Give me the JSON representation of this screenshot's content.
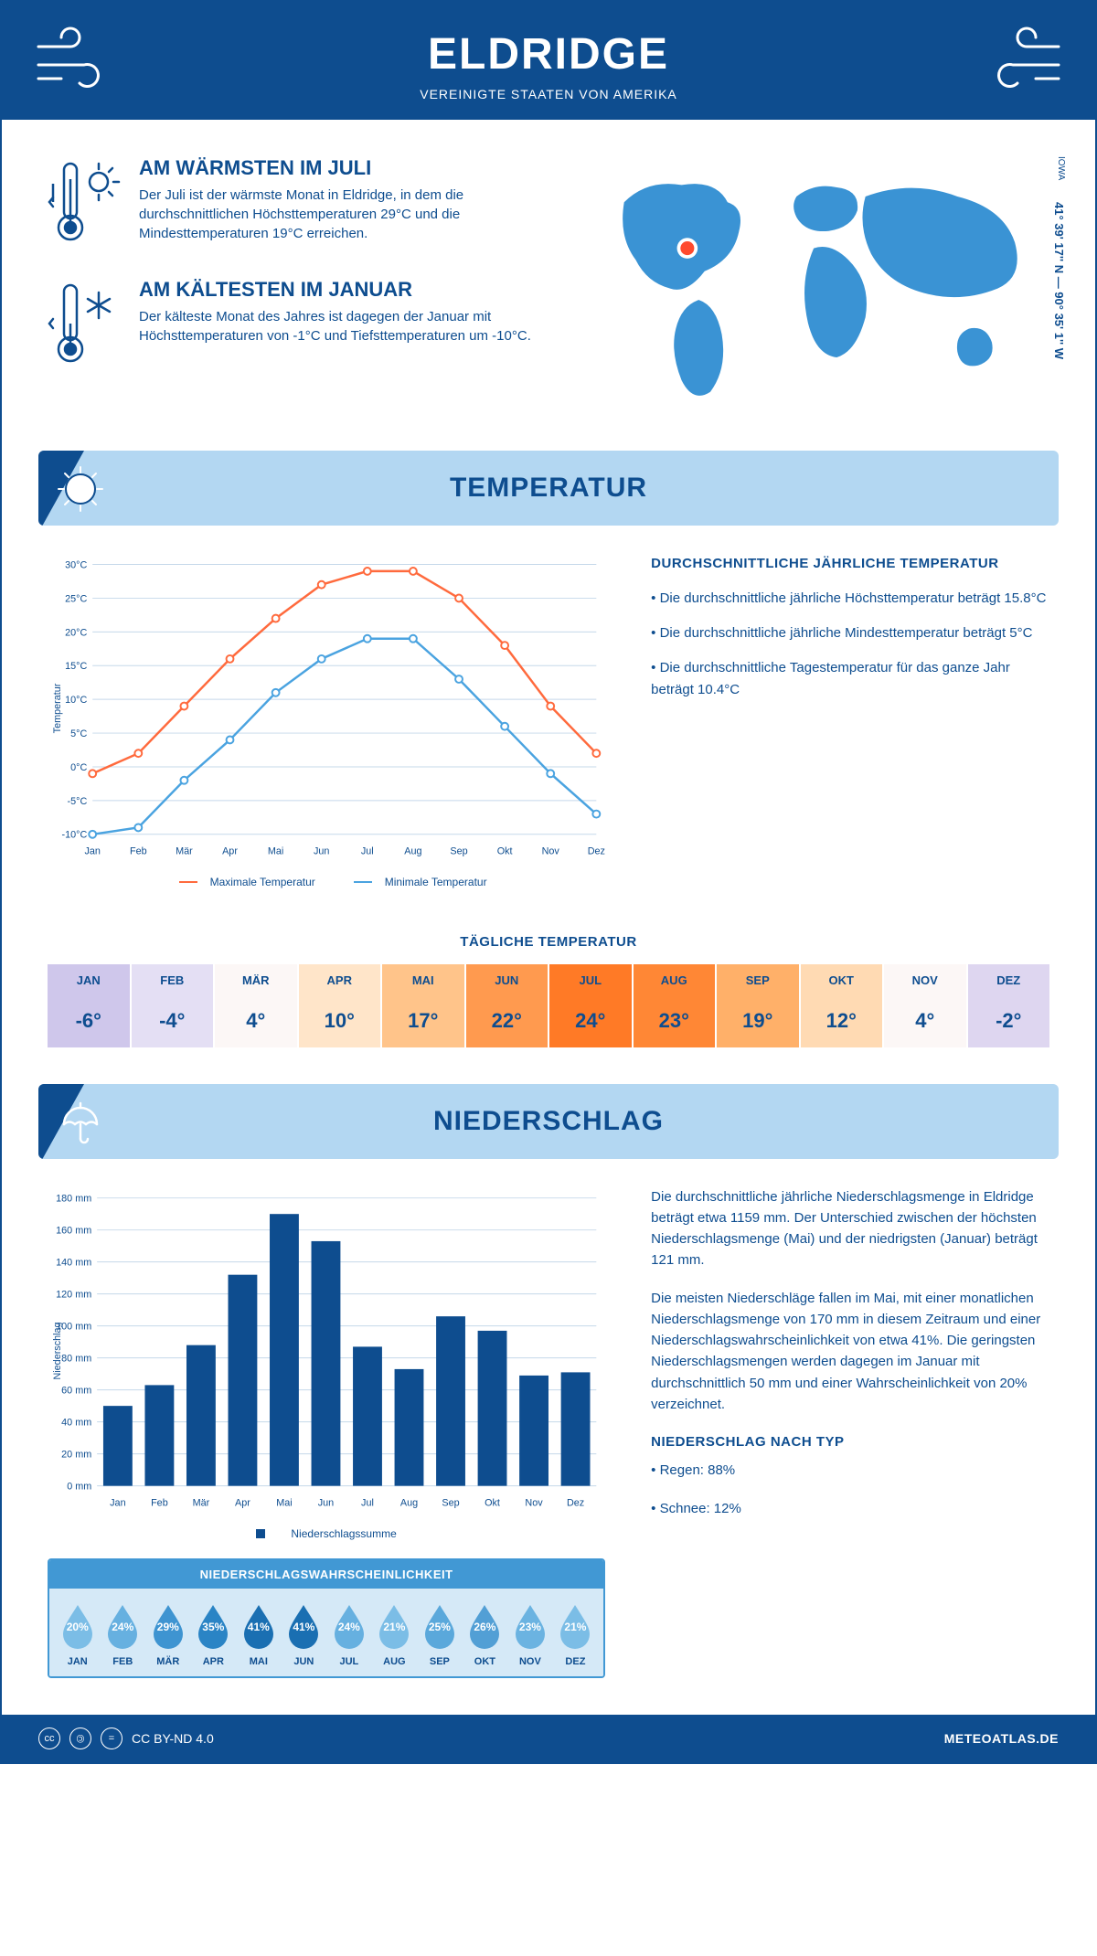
{
  "header": {
    "title": "ELDRIDGE",
    "subtitle": "VEREINIGTE STAATEN VON AMERIKA"
  },
  "location": {
    "region": "IOWA",
    "coords": "41° 39' 17'' N — 90° 35' 1'' W",
    "marker_color": "#ff4a2e"
  },
  "facts": {
    "warm": {
      "title": "AM WÄRMSTEN IM JULI",
      "text": "Der Juli ist der wärmste Monat in Eldridge, in dem die durchschnittlichen Höchsttemperaturen 29°C und die Mindesttemperaturen 19°C erreichen."
    },
    "cold": {
      "title": "AM KÄLTESTEN IM JANUAR",
      "text": "Der kälteste Monat des Jahres ist dagegen der Januar mit Höchsttemperaturen von -1°C und Tiefsttemperaturen um -10°C."
    }
  },
  "months": [
    "Jan",
    "Feb",
    "Mär",
    "Apr",
    "Mai",
    "Jun",
    "Jul",
    "Aug",
    "Sep",
    "Okt",
    "Nov",
    "Dez"
  ],
  "months_upper": [
    "JAN",
    "FEB",
    "MÄR",
    "APR",
    "MAI",
    "JUN",
    "JUL",
    "AUG",
    "SEP",
    "OKT",
    "NOV",
    "DEZ"
  ],
  "section_temp": "TEMPERATUR",
  "section_precip": "NIEDERSCHLAG",
  "temp_chart": {
    "type": "line",
    "ylabel": "Temperatur",
    "ylim": [
      -10,
      30
    ],
    "ytick_step": 5,
    "ytick_suffix": "°C",
    "grid_color": "#c5d8ea",
    "series": [
      {
        "name": "Maximale Temperatur",
        "color": "#ff6a3d",
        "values": [
          -1,
          2,
          9,
          16,
          22,
          27,
          29,
          29,
          25,
          18,
          9,
          2
        ]
      },
      {
        "name": "Minimale Temperatur",
        "color": "#4aa3e0",
        "values": [
          -10,
          -9,
          -2,
          4,
          11,
          16,
          19,
          19,
          13,
          6,
          -1,
          -7
        ]
      }
    ],
    "marker_fill": "#ffffff"
  },
  "temp_side": {
    "title": "DURCHSCHNITTLICHE JÄHRLICHE TEMPERATUR",
    "bullets": [
      "• Die durchschnittliche jährliche Höchsttemperatur beträgt 15.8°C",
      "• Die durchschnittliche jährliche Mindesttemperatur beträgt 5°C",
      "• Die durchschnittliche Tagestemperatur für das ganze Jahr beträgt 10.4°C"
    ]
  },
  "daily": {
    "title": "TÄGLICHE TEMPERATUR",
    "values": [
      "-6°",
      "-4°",
      "4°",
      "10°",
      "17°",
      "22°",
      "24°",
      "23°",
      "19°",
      "12°",
      "4°",
      "-2°"
    ],
    "colors": [
      "#cfc7eb",
      "#e4dff4",
      "#fcf7f6",
      "#ffe5c9",
      "#ffc48a",
      "#ff9a4f",
      "#ff7a26",
      "#ff8735",
      "#ffb069",
      "#ffdab3",
      "#fcf7f6",
      "#ded6f0"
    ],
    "text_color": "#0e4d8f"
  },
  "precip_chart": {
    "type": "bar",
    "ylabel": "Niederschlag",
    "ylim": [
      0,
      180
    ],
    "ytick_step": 20,
    "ytick_suffix": " mm",
    "bar_color": "#0e4d8f",
    "grid_color": "#c5d8ea",
    "legend": "Niederschlagssumme",
    "values": [
      50,
      63,
      88,
      132,
      170,
      153,
      87,
      73,
      106,
      97,
      69,
      71
    ]
  },
  "precip_text": {
    "p1": "Die durchschnittliche jährliche Niederschlagsmenge in Eldridge beträgt etwa 1159 mm. Der Unterschied zwischen der höchsten Niederschlagsmenge (Mai) und der niedrigsten (Januar) beträgt 121 mm.",
    "p2": "Die meisten Niederschläge fallen im Mai, mit einer monatlichen Niederschlagsmenge von 170 mm in diesem Zeitraum und einer Niederschlagswahrscheinlichkeit von etwa 41%. Die geringsten Niederschlagsmengen werden dagegen im Januar mit durchschnittlich 50 mm und einer Wahrscheinlichkeit von 20% verzeichnet.",
    "type_title": "NIEDERSCHLAG NACH TYP",
    "types": [
      "• Regen: 88%",
      "• Schnee: 12%"
    ]
  },
  "prob": {
    "title": "NIEDERSCHLAGSWAHRSCHEINLICHKEIT",
    "values": [
      "20%",
      "24%",
      "29%",
      "35%",
      "41%",
      "41%",
      "24%",
      "21%",
      "25%",
      "26%",
      "23%",
      "21%"
    ],
    "drop_colors": [
      "#7bbde6",
      "#66b0e0",
      "#3e94d1",
      "#2a84c5",
      "#1a6fb2",
      "#1a6fb2",
      "#66b0e0",
      "#7bbde6",
      "#5aa8db",
      "#529fd5",
      "#6bb3e1",
      "#7bbde6"
    ],
    "row_bg": "#d5e9f7",
    "head_bg": "#4198d4"
  },
  "footer": {
    "license": "CC BY-ND 4.0",
    "brand": "METEOATLAS.DE"
  },
  "colors": {
    "primary": "#0e4d8f",
    "section_bg": "#b3d7f2",
    "map_fill": "#3a93d4"
  }
}
